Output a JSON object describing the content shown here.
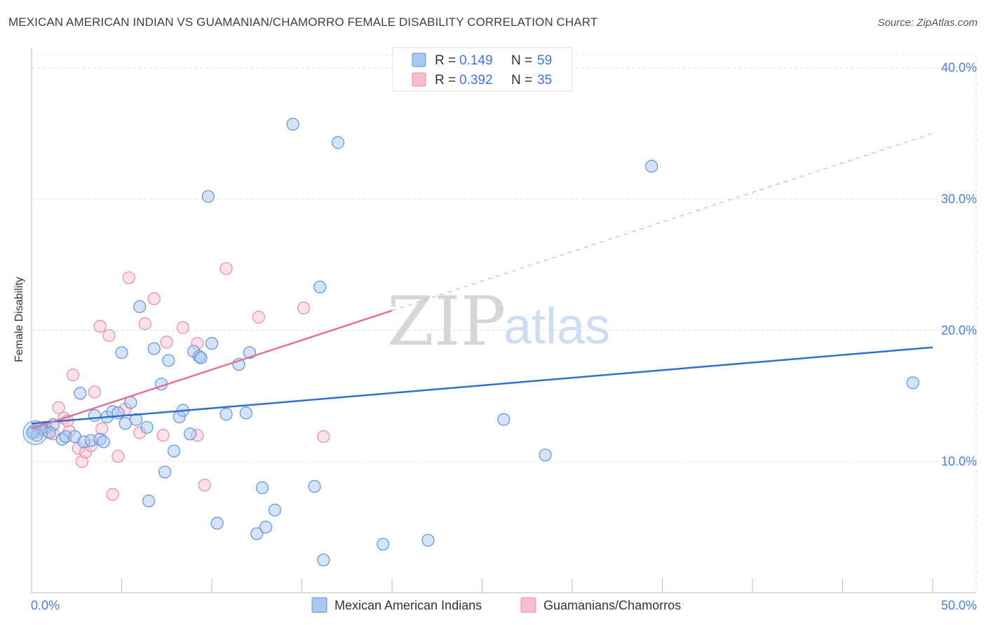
{
  "title": "MEXICAN AMERICAN INDIAN VS GUAMANIAN/CHAMORRO FEMALE DISABILITY CORRELATION CHART",
  "source": "Source: ZipAtlas.com",
  "watermark": {
    "zip": "ZIP",
    "atlas": "atlas"
  },
  "legend": {
    "rows": [
      {
        "r_label": "R =",
        "r_value": "0.149",
        "n_label": "N =",
        "n_value": "59"
      },
      {
        "r_label": "R =",
        "r_value": "0.392",
        "n_label": "N =",
        "n_value": "35"
      }
    ]
  },
  "colors": {
    "blue_fill": "#a9c8ef",
    "blue_stroke": "#5f92d8",
    "blue_line": "#2f6fd0",
    "pink_fill": "#f6bfd0",
    "pink_stroke": "#e88aa8",
    "pink_line": "#e0719a",
    "grid": "#dddddd",
    "axis_text": "#4a7fd4"
  },
  "chart_data": {
    "type": "scatter",
    "title": "MEXICAN AMERICAN INDIAN VS GUAMANIAN/CHAMORRO FEMALE DISABILITY CORRELATION CHART",
    "xlabel": "",
    "ylabel": "Female Disability",
    "xlim": [
      0,
      50
    ],
    "ylim": [
      0,
      41
    ],
    "x_tick_labels": [
      "0.0%",
      "50.0%"
    ],
    "y_ticks": [
      10,
      20,
      30,
      40
    ],
    "y_tick_labels": [
      "10.0%",
      "20.0%",
      "30.0%",
      "40.0%"
    ],
    "grid": true,
    "legend_position": "top-center",
    "series": [
      {
        "name": "Mexican American Indians",
        "color": "#a9c8ef",
        "points": [
          [
            0.1,
            12.3
          ],
          [
            0.3,
            12.0
          ],
          [
            0.5,
            12.5
          ],
          [
            0.8,
            12.6
          ],
          [
            1.2,
            12.8
          ],
          [
            1.7,
            11.7
          ],
          [
            1.9,
            11.9
          ],
          [
            2.4,
            11.9
          ],
          [
            2.7,
            15.2
          ],
          [
            2.9,
            11.5
          ],
          [
            3.3,
            11.6
          ],
          [
            3.5,
            13.5
          ],
          [
            3.8,
            11.7
          ],
          [
            4.0,
            11.5
          ],
          [
            4.2,
            13.4
          ],
          [
            4.5,
            13.8
          ],
          [
            4.8,
            13.7
          ],
          [
            5.0,
            18.3
          ],
          [
            5.2,
            12.9
          ],
          [
            5.5,
            14.5
          ],
          [
            5.8,
            13.2
          ],
          [
            6.0,
            21.8
          ],
          [
            6.4,
            12.6
          ],
          [
            6.5,
            7.0
          ],
          [
            6.8,
            18.6
          ],
          [
            7.2,
            15.9
          ],
          [
            7.4,
            9.2
          ],
          [
            7.6,
            17.7
          ],
          [
            7.9,
            10.8
          ],
          [
            8.2,
            13.4
          ],
          [
            8.4,
            13.9
          ],
          [
            8.8,
            12.1
          ],
          [
            9.0,
            18.4
          ],
          [
            9.3,
            18.0
          ],
          [
            9.4,
            17.9
          ],
          [
            9.8,
            30.2
          ],
          [
            10.0,
            19.0
          ],
          [
            10.3,
            5.3
          ],
          [
            10.8,
            13.6
          ],
          [
            11.5,
            17.4
          ],
          [
            11.9,
            13.7
          ],
          [
            12.1,
            18.3
          ],
          [
            12.5,
            4.5
          ],
          [
            12.8,
            8.0
          ],
          [
            13.0,
            5.0
          ],
          [
            13.5,
            6.3
          ],
          [
            14.5,
            35.7
          ],
          [
            15.7,
            8.1
          ],
          [
            16.0,
            23.3
          ],
          [
            16.2,
            2.5
          ],
          [
            17.0,
            34.3
          ],
          [
            19.5,
            3.7
          ],
          [
            22.0,
            4.0
          ],
          [
            26.2,
            13.2
          ],
          [
            28.5,
            10.5
          ],
          [
            34.4,
            32.5
          ],
          [
            48.9,
            16.0
          ],
          [
            0.05,
            12.2
          ],
          [
            1.0,
            12.2
          ]
        ]
      },
      {
        "name": "Guamanians/Chamorros",
        "color": "#f6bfd0",
        "points": [
          [
            0.2,
            12.4
          ],
          [
            0.4,
            12.3
          ],
          [
            0.7,
            12.6
          ],
          [
            0.9,
            12.3
          ],
          [
            1.2,
            12.1
          ],
          [
            1.5,
            14.1
          ],
          [
            1.8,
            13.3
          ],
          [
            2.0,
            13.1
          ],
          [
            2.3,
            16.6
          ],
          [
            2.6,
            11.0
          ],
          [
            2.8,
            10.0
          ],
          [
            3.0,
            10.7
          ],
          [
            3.3,
            11.2
          ],
          [
            3.5,
            15.3
          ],
          [
            3.8,
            20.3
          ],
          [
            3.9,
            12.5
          ],
          [
            4.3,
            19.6
          ],
          [
            4.5,
            7.5
          ],
          [
            4.8,
            10.4
          ],
          [
            5.2,
            14.0
          ],
          [
            5.4,
            24.0
          ],
          [
            6.0,
            12.2
          ],
          [
            6.3,
            20.5
          ],
          [
            6.8,
            22.4
          ],
          [
            7.3,
            12.0
          ],
          [
            7.5,
            19.1
          ],
          [
            8.4,
            20.2
          ],
          [
            9.2,
            12.0
          ],
          [
            9.2,
            19.0
          ],
          [
            9.6,
            8.2
          ],
          [
            10.8,
            24.7
          ],
          [
            12.6,
            21.0
          ],
          [
            15.1,
            21.7
          ],
          [
            16.2,
            11.9
          ],
          [
            2.1,
            12.3
          ]
        ]
      }
    ],
    "trend_lines": [
      {
        "series": "Mexican American Indians",
        "x": [
          0,
          50
        ],
        "y": [
          12.9,
          18.7
        ],
        "style": "solid"
      },
      {
        "series": "Guamanians/Chamorros",
        "x": [
          0,
          20
        ],
        "y": [
          12.5,
          21.5
        ],
        "style": "solid"
      },
      {
        "series": "Guamanians/Chamorros",
        "x": [
          20,
          50
        ],
        "y": [
          21.5,
          35.0
        ],
        "style": "dashed"
      }
    ]
  }
}
